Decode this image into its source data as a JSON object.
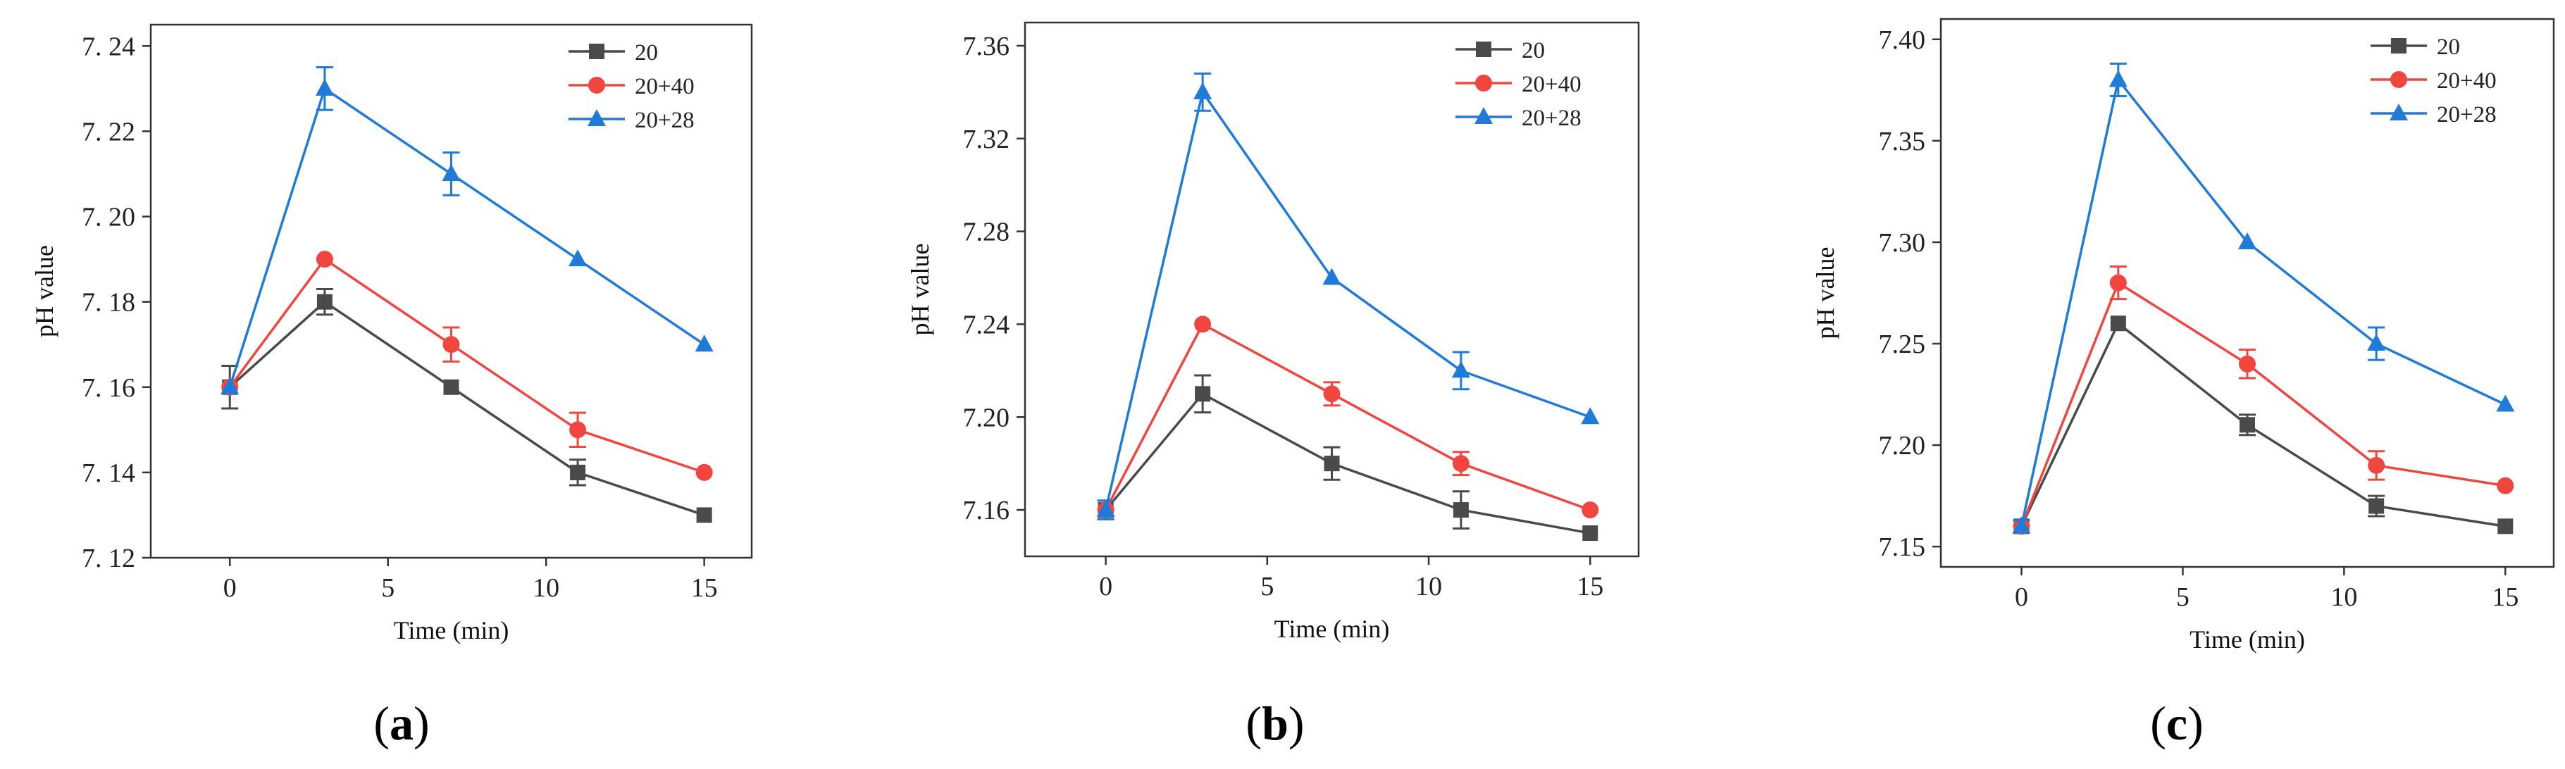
{
  "colors": {
    "s1": "#4a4a4a",
    "s2": "#f0463f",
    "s3": "#1f7ad8",
    "axis": "#333333"
  },
  "legend": [
    "20",
    "20+40",
    "20+28"
  ],
  "chart_data": [
    {
      "type": "line",
      "panel": "a",
      "label_open": "(",
      "label_letter": "a",
      "label_close": ")",
      "xlabel": "Time (min)",
      "ylabel": "pH value",
      "x": [
        0,
        3,
        7,
        11,
        15
      ],
      "xlim": [
        -2.5,
        16.5
      ],
      "ylim": [
        7.12,
        7.245
      ],
      "xticks": [
        0,
        5,
        10,
        15
      ],
      "xtick_labels": [
        "0",
        "5",
        "10",
        "15"
      ],
      "yticks": [
        7.12,
        7.14,
        7.16,
        7.18,
        7.2,
        7.22,
        7.24
      ],
      "ytick_labels": [
        "7. 12",
        "7. 14",
        "7. 16",
        "7. 18",
        "7. 20",
        "7. 22",
        "7. 24"
      ],
      "series": [
        {
          "name": "20",
          "values": [
            7.16,
            7.18,
            7.16,
            7.14,
            7.13
          ],
          "errors": [
            0.005,
            0.003,
            0,
            0.003,
            0
          ]
        },
        {
          "name": "20+40",
          "values": [
            7.16,
            7.19,
            7.17,
            7.15,
            7.14
          ],
          "errors": [
            0,
            0,
            0.004,
            0.004,
            0
          ]
        },
        {
          "name": "20+28",
          "values": [
            7.16,
            7.23,
            7.21,
            7.19,
            7.17
          ],
          "errors": [
            0,
            0.005,
            0.005,
            0,
            0
          ]
        }
      ]
    },
    {
      "type": "line",
      "panel": "b",
      "label_open": "(",
      "label_letter": "b",
      "label_close": ")",
      "xlabel": "Time (min)",
      "ylabel": "pH value",
      "x": [
        0,
        3,
        7,
        11,
        15
      ],
      "xlim": [
        -2.5,
        16.5
      ],
      "ylim": [
        7.14,
        7.37
      ],
      "xticks": [
        0,
        5,
        10,
        15
      ],
      "xtick_labels": [
        "0",
        "5",
        "10",
        "15"
      ],
      "yticks": [
        7.16,
        7.2,
        7.24,
        7.28,
        7.32,
        7.36
      ],
      "ytick_labels": [
        "7.16",
        "7.20",
        "7.24",
        "7.28",
        "7.32",
        "7.36"
      ],
      "series": [
        {
          "name": "20",
          "values": [
            7.16,
            7.21,
            7.18,
            7.16,
            7.15
          ],
          "errors": [
            0.004,
            0.008,
            0.007,
            0.008,
            0
          ]
        },
        {
          "name": "20+40",
          "values": [
            7.16,
            7.24,
            7.21,
            7.18,
            7.16
          ],
          "errors": [
            0,
            0,
            0.005,
            0.005,
            0
          ]
        },
        {
          "name": "20+28",
          "values": [
            7.16,
            7.34,
            7.26,
            7.22,
            7.2
          ],
          "errors": [
            0.004,
            0.008,
            0,
            0.008,
            0
          ]
        }
      ]
    },
    {
      "type": "line",
      "panel": "c",
      "label_open": "(",
      "label_letter": "c",
      "label_close": ")",
      "xlabel": "Time (min)",
      "ylabel": "pH value",
      "x": [
        0,
        3,
        7,
        11,
        15
      ],
      "xlim": [
        -2.5,
        16.5
      ],
      "ylim": [
        7.14,
        7.41
      ],
      "xticks": [
        0,
        5,
        10,
        15
      ],
      "xtick_labels": [
        "0",
        "5",
        "10",
        "15"
      ],
      "yticks": [
        7.15,
        7.2,
        7.25,
        7.3,
        7.35,
        7.4
      ],
      "ytick_labels": [
        "7.15",
        "7.20",
        "7.25",
        "7.30",
        "7.35",
        "7.40"
      ],
      "series": [
        {
          "name": "20",
          "values": [
            7.16,
            7.26,
            7.21,
            7.17,
            7.16
          ],
          "errors": [
            0.003,
            0,
            0.005,
            0.005,
            0
          ]
        },
        {
          "name": "20+40",
          "values": [
            7.16,
            7.28,
            7.24,
            7.19,
            7.18
          ],
          "errors": [
            0,
            0.008,
            0.007,
            0.007,
            0
          ]
        },
        {
          "name": "20+28",
          "values": [
            7.16,
            7.38,
            7.3,
            7.25,
            7.22
          ],
          "errors": [
            0.003,
            0.008,
            0,
            0.008,
            0
          ]
        }
      ]
    }
  ]
}
